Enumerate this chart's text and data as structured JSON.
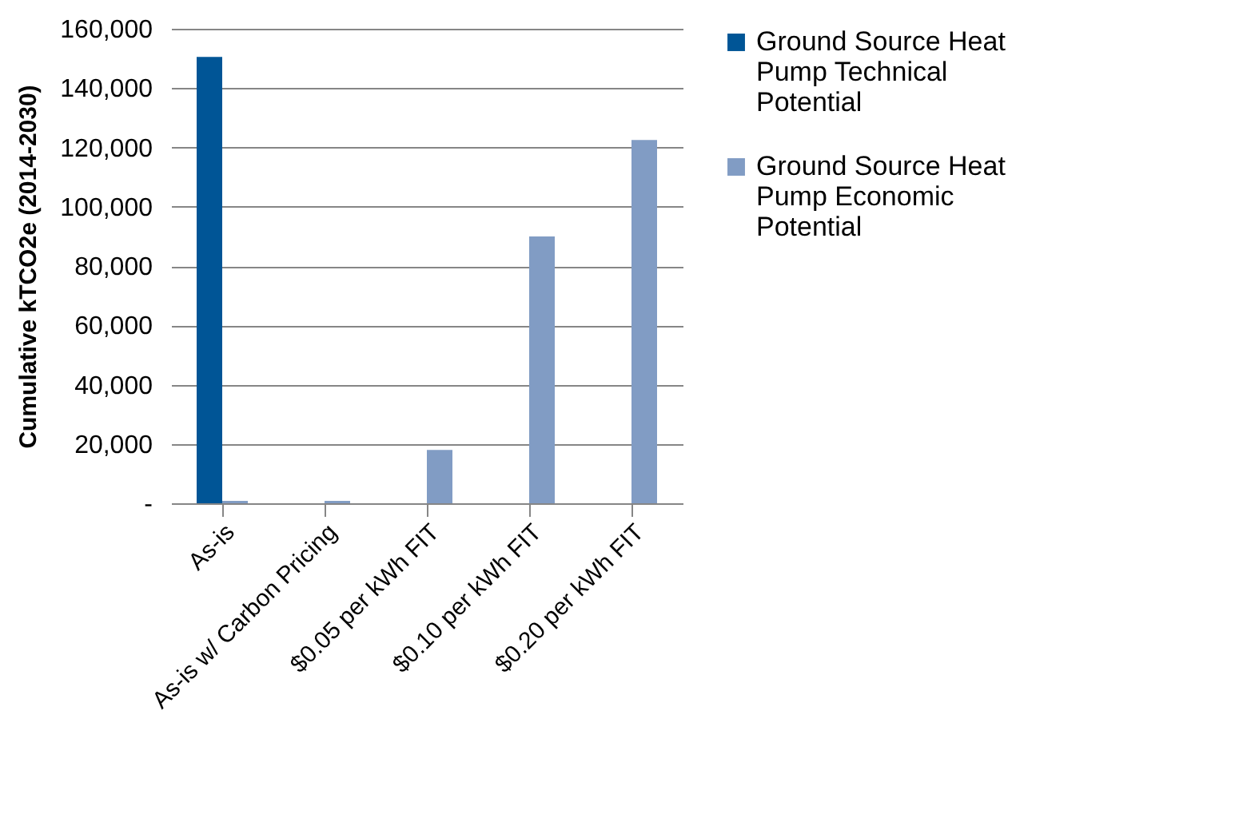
{
  "chart_data": {
    "type": "bar",
    "ylabel": "Cumulative kTCO2e (2014-2030)",
    "categories": [
      "As-is",
      "As-is w/ Carbon Pricing",
      "$0.05 per kWh FIT",
      "$0.10 per kWh FIT",
      "$0.20 per kWh FIT"
    ],
    "series": [
      {
        "name": "Ground Source Heat Pump Technical Potential",
        "color": "#005596",
        "values": [
          150500,
          0,
          0,
          0,
          0
        ]
      },
      {
        "name": "Ground Source Heat Pump Economic Potential",
        "color": "#819cc4",
        "values": [
          800,
          800,
          18000,
          90000,
          122500
        ]
      }
    ],
    "ylim": [
      0,
      160000
    ],
    "yticks": [
      {
        "value": 0,
        "label": "-"
      },
      {
        "value": 20000,
        "label": "20,000"
      },
      {
        "value": 40000,
        "label": "40,000"
      },
      {
        "value": 60000,
        "label": "60,000"
      },
      {
        "value": 80000,
        "label": "80,000"
      },
      {
        "value": 100000,
        "label": "100,000"
      },
      {
        "value": 120000,
        "label": "120,000"
      },
      {
        "value": 140000,
        "label": "140,000"
      },
      {
        "value": 160000,
        "label": "160,000"
      }
    ],
    "grid": "y",
    "legend": "right"
  }
}
